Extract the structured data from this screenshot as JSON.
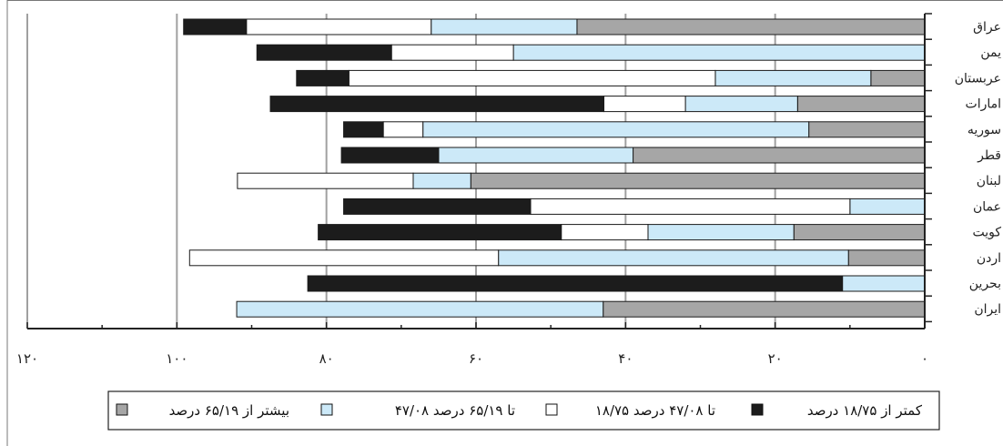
{
  "chart_data": {
    "type": "bar",
    "orientation": "horizontal-stacked",
    "title": "",
    "xlabel": "",
    "ylabel": "",
    "xlim": [
      0,
      120
    ],
    "x_direction": "right-to-left",
    "x_ticks": [
      0,
      20,
      40,
      60,
      80,
      100,
      120
    ],
    "x_tick_labels": [
      "۰",
      "۲۰",
      "۴۰",
      "۶۰",
      "۸۰",
      "۱۰۰",
      "۱۲۰"
    ],
    "grid": "vertical major gridlines",
    "legend_position": "bottom",
    "categories": [
      "عراق",
      "یمن",
      "عربستان",
      "امارات",
      "سوریه",
      "قطر",
      "لبنان",
      "عمان",
      "کویت",
      "اردن",
      "بحرین",
      "ایران"
    ],
    "series": [
      {
        "name": "بیشتر از ۶۵/۱۹ درصد",
        "color": "#a6a6a6",
        "values": [
          46.5,
          0,
          7.2,
          17.0,
          15.5,
          39.0,
          60.7,
          0,
          17.5,
          10.2,
          0,
          43.0
        ]
      },
      {
        "name": "۴۷/۰۸ تا ۶۵/۱۹ درصد",
        "color": "#cce9f8",
        "values": [
          19.5,
          55.0,
          20.8,
          15.0,
          51.6,
          26.0,
          7.7,
          10.0,
          19.5,
          46.8,
          11.0,
          49.0
        ]
      },
      {
        "name": "۱۸/۷۵ تا ۴۷/۰۸ درصد",
        "color": "#ffffff",
        "values": [
          24.7,
          16.3,
          49.0,
          10.9,
          5.3,
          0,
          23.5,
          42.7,
          11.6,
          41.3,
          0,
          0
        ]
      },
      {
        "name": "کمتر از ۱۸/۷۵ درصد",
        "color": "#1c1c1c",
        "values": [
          8.4,
          18.0,
          7.0,
          44.6,
          5.3,
          13.0,
          0,
          25.0,
          32.5,
          0,
          71.5,
          0
        ]
      }
    ]
  }
}
